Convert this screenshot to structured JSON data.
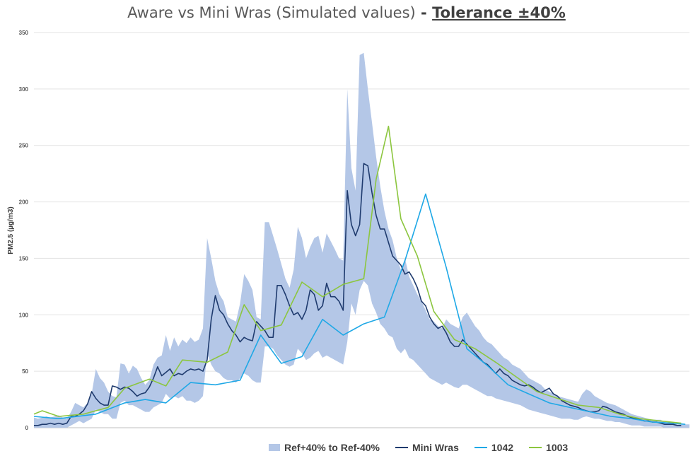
{
  "chart_data": {
    "type": "line",
    "title": "Aware vs Mini Wras (Simulated values)",
    "title_separator": " - ",
    "title_emphasis": "Tolerance ±40%",
    "xlabel": "",
    "ylabel": "PM2.5 (µg/m3)",
    "ylim": [
      0,
      350
    ],
    "yticks": [
      0,
      50,
      100,
      150,
      200,
      250,
      300,
      350
    ],
    "grid": "horizontal",
    "legend_position": "bottom",
    "x_count": 160,
    "band": {
      "name": "Ref+40% to Ref-40%",
      "color": "#b4c7e7",
      "upper": [
        9,
        8,
        9,
        10,
        9,
        10,
        11,
        9,
        8,
        14,
        22,
        20,
        18,
        22,
        30,
        52,
        44,
        40,
        32,
        28,
        27,
        57,
        56,
        48,
        55,
        52,
        44,
        38,
        42,
        56,
        62,
        64,
        82,
        68,
        80,
        72,
        78,
        75,
        80,
        76,
        78,
        88,
        168,
        150,
        130,
        118,
        112,
        98,
        96,
        94,
        110,
        136,
        130,
        122,
        98,
        96,
        182,
        182,
        170,
        158,
        145,
        132,
        124,
        140,
        178,
        168,
        150,
        160,
        168,
        170,
        155,
        172,
        165,
        158,
        150,
        148,
        300,
        230,
        210,
        330,
        332,
        300,
        270,
        240,
        214,
        192,
        176,
        166,
        150,
        140,
        150,
        134,
        126,
        118,
        112,
        104,
        96,
        94,
        90,
        88,
        96,
        92,
        90,
        88,
        98,
        102,
        96,
        90,
        86,
        80,
        76,
        74,
        70,
        66,
        62,
        60,
        56,
        54,
        52,
        48,
        44,
        42,
        40,
        38,
        34,
        32,
        30,
        28,
        27,
        26,
        25,
        24,
        23,
        30,
        34,
        32,
        28,
        26,
        24,
        22,
        21,
        20,
        18,
        16,
        14,
        12,
        11,
        10,
        9,
        8,
        7,
        7,
        7,
        5,
        4,
        4,
        3,
        3,
        3,
        3
      ],
      "lower": [
        0,
        0,
        0,
        0,
        0,
        0,
        0,
        0,
        0,
        2,
        4,
        6,
        4,
        6,
        8,
        16,
        14,
        12,
        12,
        8,
        8,
        22,
        24,
        20,
        20,
        18,
        16,
        14,
        14,
        18,
        20,
        22,
        30,
        26,
        28,
        26,
        28,
        24,
        24,
        22,
        24,
        28,
        66,
        56,
        50,
        48,
        44,
        42,
        42,
        40,
        44,
        48,
        46,
        42,
        40,
        40,
        72,
        72,
        70,
        64,
        60,
        56,
        54,
        56,
        70,
        66,
        60,
        62,
        66,
        68,
        62,
        64,
        62,
        60,
        58,
        56,
        76,
        110,
        100,
        122,
        130,
        126,
        110,
        102,
        92,
        88,
        82,
        80,
        70,
        66,
        70,
        62,
        60,
        56,
        52,
        48,
        44,
        42,
        40,
        38,
        40,
        38,
        36,
        35,
        38,
        38,
        36,
        34,
        32,
        30,
        28,
        28,
        26,
        25,
        24,
        23,
        22,
        21,
        20,
        18,
        16,
        15,
        14,
        13,
        12,
        11,
        10,
        9,
        8,
        8,
        8,
        7,
        7,
        9,
        10,
        9,
        8,
        8,
        7,
        6,
        6,
        5,
        5,
        4,
        3,
        2,
        2,
        2,
        1,
        1,
        1,
        1,
        1,
        0,
        0,
        0,
        0,
        0,
        0,
        0
      ]
    },
    "series": [
      {
        "name": "Mini Wras",
        "color": "#1f3b6e",
        "width": 1.6,
        "x": [
          0,
          1,
          2,
          3,
          4,
          5,
          6,
          7,
          8,
          9,
          10,
          11,
          12,
          13,
          14,
          15,
          16,
          17,
          18,
          19,
          20,
          21,
          22,
          23,
          24,
          25,
          26,
          27,
          28,
          29,
          30,
          31,
          32,
          33,
          34,
          35,
          36,
          37,
          38,
          39,
          40,
          41,
          42,
          43,
          44,
          45,
          46,
          47,
          48,
          49,
          50,
          51,
          52,
          53,
          54,
          55,
          56,
          57,
          58,
          59,
          60,
          61,
          62,
          63,
          64,
          65,
          66,
          67,
          68,
          69,
          70,
          71,
          72,
          73,
          74,
          75,
          76,
          77,
          78,
          79,
          80,
          81,
          82,
          83,
          84,
          85,
          86,
          87,
          88,
          89,
          90,
          91,
          92,
          93,
          94,
          95,
          96,
          97,
          98,
          99,
          100,
          101,
          102,
          103,
          104,
          105,
          106,
          107,
          108,
          109,
          110,
          111,
          112,
          113,
          114,
          115,
          116,
          117,
          118,
          119,
          120,
          121,
          122,
          123,
          124,
          125,
          126,
          127,
          128,
          129,
          130,
          131,
          132,
          133,
          134,
          135,
          136,
          137,
          138,
          139,
          140,
          141,
          142,
          143,
          144,
          145,
          146,
          147,
          148,
          149,
          150,
          151,
          152,
          153,
          154,
          155,
          156,
          157
        ],
        "values": [
          2,
          2,
          3,
          3,
          4,
          3,
          4,
          3,
          4,
          10,
          10,
          12,
          15,
          21,
          32,
          26,
          22,
          20,
          20,
          37,
          36,
          34,
          36,
          35,
          32,
          28,
          30,
          31,
          36,
          44,
          54,
          46,
          49,
          52,
          46,
          48,
          47,
          50,
          52,
          51,
          52,
          50,
          60,
          96,
          117,
          104,
          100,
          92,
          86,
          82,
          76,
          80,
          78,
          77,
          94,
          90,
          86,
          80,
          80,
          126,
          126,
          118,
          108,
          100,
          102,
          96,
          104,
          122,
          118,
          104,
          108,
          128,
          116,
          116,
          112,
          104,
          210,
          180,
          170,
          180,
          234,
          232,
          208,
          188,
          176,
          176,
          164,
          152,
          148,
          144,
          136,
          138,
          132,
          124,
          112,
          108,
          98,
          92,
          88,
          90,
          84,
          76,
          72,
          72,
          78,
          74,
          70,
          66,
          62,
          58,
          56,
          52,
          48,
          52,
          48,
          46,
          42,
          40,
          38,
          37,
          38,
          36,
          33,
          31,
          33,
          35,
          30,
          28,
          24,
          22,
          20,
          19,
          18,
          16,
          15,
          14,
          14,
          15,
          19,
          18,
          16,
          14,
          13,
          12,
          10,
          9,
          8,
          7,
          6,
          6,
          5,
          5,
          4,
          3,
          3,
          3,
          2,
          2
        ]
      },
      {
        "name": "1042",
        "color": "#1fa8e6",
        "width": 1.6,
        "x": [
          0,
          6,
          15,
          22,
          27,
          32,
          38,
          44,
          50,
          55,
          60,
          65,
          70,
          75,
          80,
          85,
          90,
          95,
          100,
          105,
          110,
          115,
          120,
          125,
          130,
          135,
          140,
          145,
          150,
          155,
          158
        ],
        "values": [
          10,
          8,
          12,
          22,
          25,
          22,
          40,
          38,
          42,
          82,
          57,
          63,
          96,
          82,
          92,
          98,
          148,
          207,
          142,
          70,
          55,
          38,
          30,
          22,
          18,
          14,
          10,
          8,
          5,
          4,
          3
        ]
      },
      {
        "name": "1003",
        "color": "#8cc63f",
        "width": 1.6,
        "x": [
          0,
          2,
          6,
          12,
          18,
          22,
          28,
          32,
          36,
          42,
          47,
          51,
          55,
          60,
          65,
          70,
          75,
          80,
          83,
          86,
          89,
          93,
          97,
          102,
          107,
          112,
          117,
          122,
          127,
          132,
          137,
          142,
          147,
          152,
          157
        ],
        "values": [
          12,
          15,
          10,
          12,
          18,
          35,
          43,
          37,
          60,
          58,
          67,
          109,
          86,
          91,
          129,
          116,
          127,
          132,
          220,
          267,
          185,
          152,
          103,
          78,
          70,
          58,
          45,
          32,
          26,
          20,
          18,
          12,
          8,
          6,
          4
        ]
      }
    ]
  }
}
